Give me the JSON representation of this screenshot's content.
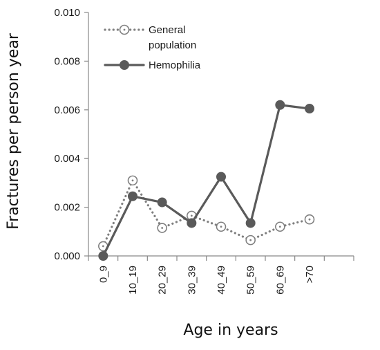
{
  "chart_data": {
    "type": "line",
    "title": "",
    "xlabel": "Age in years",
    "ylabel": "Fractures per person year",
    "categories": [
      "0_9",
      "10_19",
      "20_29",
      "30_39",
      "40_49",
      "50_59",
      "60_69",
      ">70"
    ],
    "ylim": [
      0,
      0.01
    ],
    "yticks": [
      "0.000",
      "0.002",
      "0.004",
      "0.006",
      "0.008",
      "0.010"
    ],
    "grid": false,
    "legend_position": "top-left",
    "series": [
      {
        "name": "General population",
        "legend_lines": [
          "General",
          "population"
        ],
        "style": "dotted",
        "marker": "open-circle-dot",
        "color": "#7f7f7f",
        "values": [
          0.0004,
          0.0031,
          0.00115,
          0.00165,
          0.0012,
          0.00065,
          0.0012,
          0.0015
        ]
      },
      {
        "name": "Hemophilia",
        "legend_lines": [
          "Hemophilia"
        ],
        "style": "solid",
        "marker": "filled-circle",
        "color": "#5a5a5a",
        "values": [
          0.0,
          0.00245,
          0.0022,
          0.00135,
          0.00325,
          0.00135,
          0.0062,
          0.00605
        ]
      }
    ]
  }
}
